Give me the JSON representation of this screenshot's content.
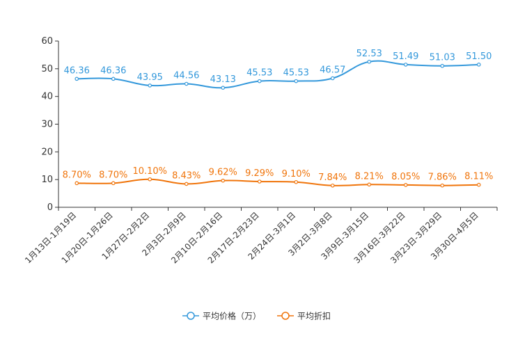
{
  "chart_data": {
    "type": "line",
    "categories": [
      "1月13日-1月19日",
      "1月20日-1月26日",
      "1月27日-2月2日",
      "2月3日-2月9日",
      "2月10日-2月16日",
      "2月17日-2月23日",
      "2月24日-3月1日",
      "3月2日-3月8日",
      "3月9日-3月15日",
      "3月16日-3月22日",
      "3月23日-3月29日",
      "3月30日-4月5日"
    ],
    "ylim": [
      0,
      60
    ],
    "yticks": [
      0,
      10,
      20,
      30,
      40,
      50,
      60
    ],
    "ytick_labels": [
      "0",
      "10",
      "20",
      "30",
      "40",
      "50",
      "60"
    ],
    "legend_position": "bottom-center",
    "series": [
      {
        "name": "平均价格（万）",
        "color": "#3398DB",
        "values": [
          46.36,
          46.36,
          43.95,
          44.56,
          43.13,
          45.53,
          45.53,
          46.57,
          52.53,
          51.49,
          51.03,
          51.5
        ],
        "labels": [
          "46.36",
          "46.36",
          "43.95",
          "44.56",
          "43.13",
          "45.53",
          "45.53",
          "46.57",
          "52.53",
          "51.49",
          "51.03",
          "51.50"
        ]
      },
      {
        "name": "平均折扣",
        "color": "#F0740A",
        "values": [
          8.7,
          8.7,
          10.1,
          8.43,
          9.62,
          9.29,
          9.1,
          7.84,
          8.21,
          8.05,
          7.86,
          8.11
        ],
        "labels": [
          "8.70%",
          "8.70%",
          "10.10%",
          "8.43%",
          "9.62%",
          "9.29%",
          "9.10%",
          "7.84%",
          "8.21%",
          "8.05%",
          "7.86%",
          "8.11%"
        ]
      }
    ]
  }
}
